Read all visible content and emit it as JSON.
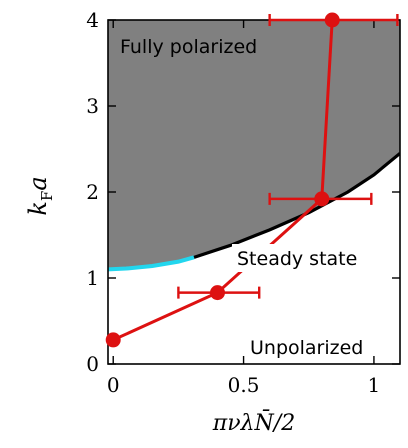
{
  "chart_data": {
    "type": "scatter",
    "xlabel": "πνλN̄/2",
    "ylabel": "k_F a",
    "xlim": [
      -0.02,
      1.1
    ],
    "ylim": [
      0,
      4
    ],
    "x_ticks": [
      0,
      0.5,
      1
    ],
    "x_tick_labels": [
      "0",
      "0.5",
      "1"
    ],
    "y_ticks": [
      0,
      1,
      2,
      3,
      4
    ],
    "y_tick_labels": [
      "0",
      "1",
      "2",
      "3",
      "4"
    ],
    "annotations": [
      "Fully polarized",
      "Steady state",
      "Unpolarized"
    ],
    "boundary": {
      "cyan_segment": {
        "x": [
          -0.02,
          0.05,
          0.15,
          0.25,
          0.31
        ],
        "y": [
          1.1,
          1.11,
          1.14,
          1.19,
          1.24
        ]
      },
      "black_segment": {
        "x": [
          0.31,
          0.45,
          0.6,
          0.75,
          0.9,
          1.0,
          1.1
        ],
        "y": [
          1.24,
          1.38,
          1.56,
          1.76,
          2.0,
          2.2,
          2.45
        ]
      }
    },
    "series": [
      {
        "color": "#dd1111",
        "points": [
          {
            "x": 0.0,
            "y": 0.28
          },
          {
            "x": 0.4,
            "y": 0.83,
            "xerr_low": 0.25,
            "xerr_high": 0.56
          },
          {
            "x": 0.8,
            "y": 1.92,
            "xerr_low": 0.6,
            "xerr_high": 0.99
          },
          {
            "x": 0.84,
            "y": 4.0,
            "xerr_low": 0.6,
            "xerr_high": 1.09
          }
        ]
      }
    ],
    "colors": {
      "polarized_region": "#808080",
      "boundary_black": "#000000",
      "boundary_cyan": "#22d6ee",
      "data": "#dd1111"
    }
  }
}
